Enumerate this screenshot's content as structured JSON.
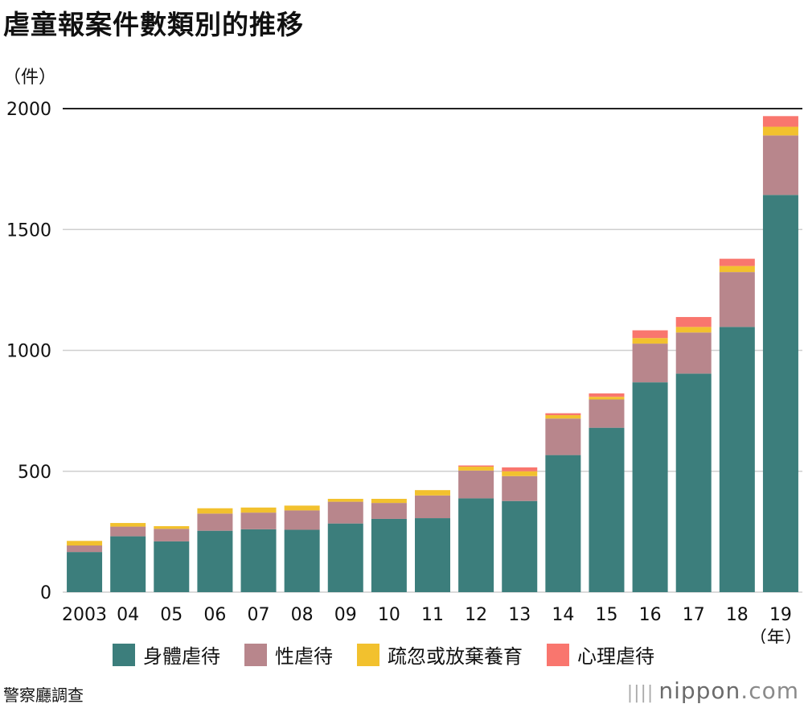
{
  "title": "虐童報案件數類別的推移",
  "unit_label": "（件）",
  "source": "警察廳調查",
  "brand": {
    "name": "nippon",
    "suffix": ".com"
  },
  "chart_data": {
    "type": "bar",
    "stacked": true,
    "categories": [
      "2003",
      "04",
      "05",
      "06",
      "07",
      "08",
      "09",
      "10",
      "11",
      "12",
      "13",
      "14",
      "15",
      "16",
      "17",
      "18",
      "19"
    ],
    "x_unit_label": "（年）",
    "ylim": [
      0,
      2000
    ],
    "yticks": [
      0,
      500,
      1000,
      1500,
      2000
    ],
    "grid": true,
    "legend_position": "bottom",
    "series": [
      {
        "name": "身體虐待",
        "color": "#3c7e7c",
        "values": [
          166,
          231,
          210,
          254,
          260,
          258,
          284,
          303,
          306,
          388,
          377,
          567,
          680,
          868,
          904,
          1097,
          1643
        ]
      },
      {
        "name": "性虐待",
        "color": "#b8868c",
        "values": [
          27,
          40,
          52,
          71,
          69,
          80,
          90,
          66,
          94,
          115,
          103,
          151,
          117,
          160,
          170,
          227,
          246
        ]
      },
      {
        "name": "疏忽或放棄養育",
        "color": "#f2c12e",
        "values": [
          19,
          15,
          11,
          22,
          21,
          20,
          12,
          17,
          22,
          16,
          20,
          14,
          11,
          23,
          23,
          25,
          36
        ]
      },
      {
        "name": "心理虐待",
        "color": "#f9766e",
        "values": [
          0,
          0,
          0,
          0,
          0,
          0,
          0,
          0,
          0,
          5,
          16,
          8,
          14,
          32,
          41,
          30,
          44
        ]
      }
    ]
  }
}
